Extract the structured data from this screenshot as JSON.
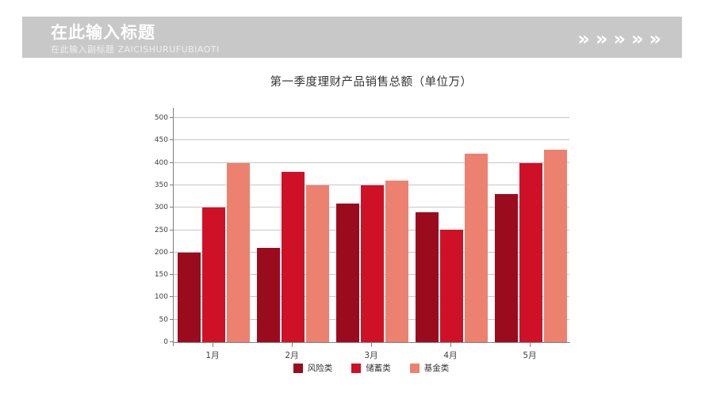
{
  "header": {
    "title": "在此输入标题",
    "subtitle": "在此输入副标题 ZAICISHURUFUBIAOTI",
    "chevron_glyph": "»",
    "chevron_count": 5,
    "band_color": "#c8c8c8",
    "text_color": "#ffffff"
  },
  "chart_data": {
    "type": "bar",
    "title": "第一季度理财产品销售总额（单位万）",
    "categories": [
      "1月",
      "2月",
      "3月",
      "4月",
      "5月"
    ],
    "series": [
      {
        "name": "风险类",
        "color": "#9b0b1e",
        "values": [
          200,
          210,
          310,
          290,
          330
        ]
      },
      {
        "name": "储蓄类",
        "color": "#ce1126",
        "values": [
          300,
          380,
          350,
          250,
          400
        ]
      },
      {
        "name": "基金类",
        "color": "#ec8170",
        "values": [
          400,
          350,
          360,
          420,
          430
        ]
      }
    ],
    "xlabel": "",
    "ylabel": "",
    "ylim": [
      0,
      500
    ],
    "ytick_step": 50,
    "grid": true,
    "legend_position": "bottom",
    "axis_color": "#7f7f7f",
    "gridline_color": "#c6c6c6",
    "label_color": "#404040"
  }
}
